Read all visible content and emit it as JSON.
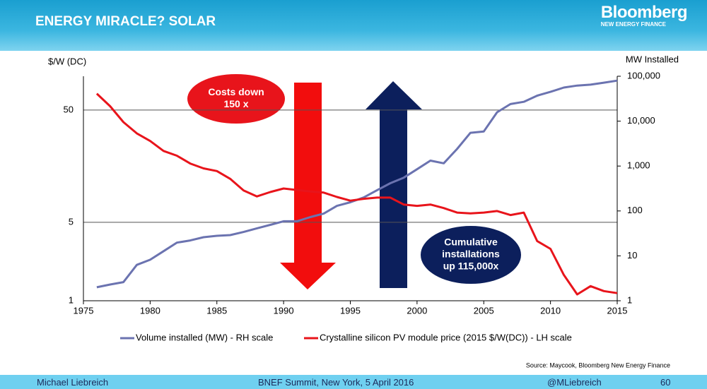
{
  "header": {
    "title": "ENERGY MIRACLE? SOLAR",
    "logo": "Bloomberg",
    "logo_sub": "NEW ENERGY FINANCE"
  },
  "chart_data": {
    "type": "line",
    "y_label": "$/W (DC)",
    "y2_label": "MW Installed",
    "x": [
      1976,
      1977,
      1978,
      1979,
      1980,
      1981,
      1982,
      1983,
      1984,
      1985,
      1986,
      1987,
      1988,
      1989,
      1990,
      1991,
      1992,
      1993,
      1994,
      1995,
      1996,
      1997,
      1998,
      1999,
      2000,
      2001,
      2002,
      2003,
      2004,
      2005,
      2006,
      2007,
      2008,
      2009,
      2010,
      2011,
      2012,
      2013,
      2014,
      2015
    ],
    "series": [
      {
        "name": "Volume installed (MW) - RH scale",
        "color": "#6b73b0",
        "axis": "y2",
        "values": [
          2.0,
          2.3,
          2.6,
          6.3,
          8.2,
          12.7,
          19.7,
          22,
          26,
          28,
          29,
          34,
          41,
          49,
          59,
          59,
          73,
          87,
          130,
          156,
          200,
          290,
          415,
          550,
          850,
          1320,
          1150,
          2400,
          5500,
          5900,
          15800,
          24000,
          27000,
          37000,
          45000,
          56000,
          62000,
          65000,
          72000,
          80000
        ]
      },
      {
        "name": "Crystalline silicon PV module price (2015 $/W(DC)) - LH scale",
        "color": "#e8141b",
        "values": [
          70,
          54,
          39,
          31,
          26.5,
          21.6,
          19.6,
          16.7,
          15.1,
          14.3,
          12.2,
          9.6,
          8.5,
          9.3,
          10,
          9.7,
          9.4,
          9.2,
          8.4,
          7.8,
          8.1,
          8.3,
          8.3,
          7.2,
          7.0,
          7.2,
          6.7,
          6.1,
          6.0,
          6.1,
          6.3,
          5.8,
          6.1,
          3.4,
          2.9,
          1.7,
          1.14,
          1.35,
          1.22,
          1.17
        ]
      }
    ],
    "xlim": [
      1975,
      2015
    ],
    "xticks": [
      1975,
      1980,
      1985,
      1990,
      1995,
      2000,
      2005,
      2010,
      2015
    ],
    "ylim": [
      1,
      100
    ],
    "yticks": [
      1,
      5,
      50
    ],
    "yscale": "log",
    "y2lim": [
      1,
      100000
    ],
    "y2scale": "log",
    "y2ticks": [
      1,
      10,
      100,
      {
        "value": 1000,
        "label": "1,000"
      },
      {
        "value": 10000,
        "label": "10,000"
      },
      {
        "value": 100000,
        "label": "100,000"
      }
    ],
    "grid": true,
    "annotations": [
      [
        "Costs down",
        "150 x"
      ],
      [
        "Cumulative",
        "installations",
        "up 115,000x"
      ]
    ],
    "source": "Source: Maycook, Bloomberg New Energy Finance"
  },
  "footer": {
    "author": "Michael Liebreich",
    "event": "BNEF Summit, New York, 5 April 2016",
    "handle": "@MLiebreich",
    "page": "60"
  }
}
